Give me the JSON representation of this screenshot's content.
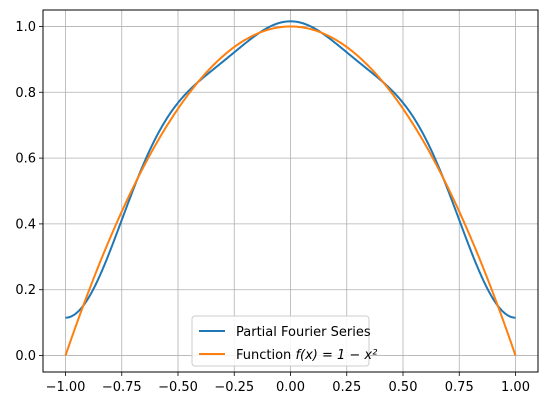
{
  "chart_data": {
    "type": "line",
    "title": "",
    "xlabel": "",
    "ylabel": "",
    "xlim": [
      -1.1,
      1.1
    ],
    "ylim": [
      -0.05,
      1.05
    ],
    "grid": true,
    "legend_position": "bottom-center",
    "x_ticks": [
      -1.0,
      -0.75,
      -0.5,
      -0.25,
      0.0,
      0.25,
      0.5,
      0.75,
      1.0
    ],
    "x_tick_labels": [
      "−1.00",
      "−0.75",
      "−0.50",
      "−0.25",
      "0.00",
      "0.25",
      "0.50",
      "0.75",
      "1.00"
    ],
    "y_ticks": [
      0.0,
      0.2,
      0.4,
      0.6,
      0.8,
      1.0
    ],
    "y_tick_labels": [
      "0.0",
      "0.2",
      "0.4",
      "0.6",
      "0.8",
      "1.0"
    ],
    "series": [
      {
        "name": "Partial Fourier Series",
        "color": "#1f77b4",
        "function": "2/3 + sum_{n=1..3} 4(-1)^{n+1}/(n^2 pi^2) cos(n pi x)"
      },
      {
        "name": "Function f(x) = 1 − x²",
        "color": "#ff7f0e",
        "function": "1 - x^2"
      }
    ],
    "legend": {
      "entries": [
        {
          "label": "Partial Fourier Series",
          "color": "#1f77b4"
        },
        {
          "label_prefix": "Function ",
          "label_math": "f(x) = 1 − x²",
          "color": "#ff7f0e"
        }
      ]
    }
  }
}
